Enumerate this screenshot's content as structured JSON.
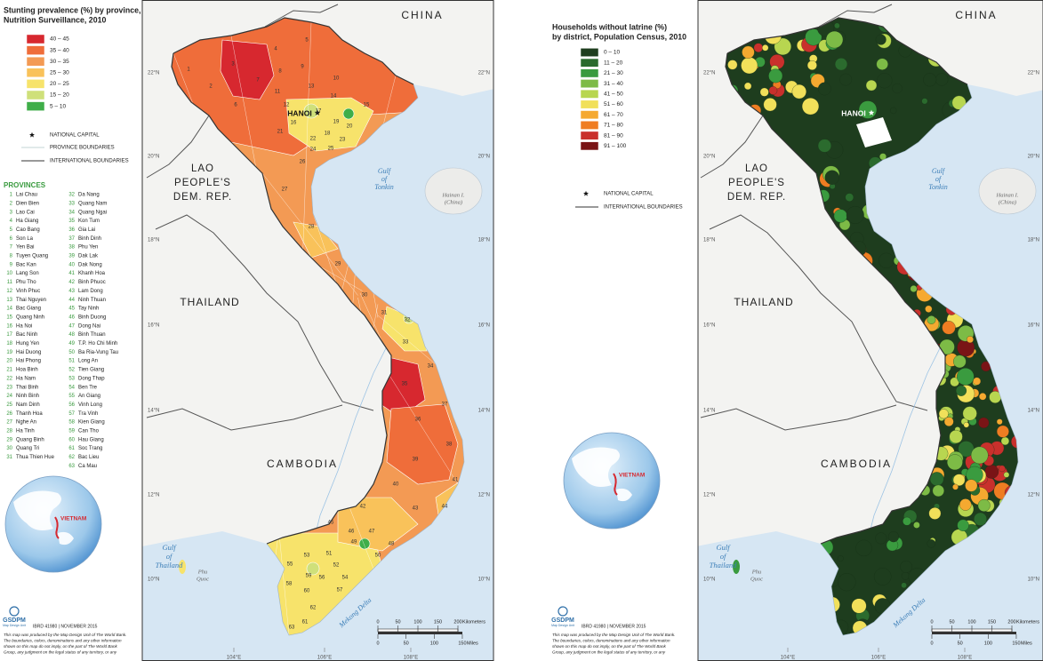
{
  "maps": [
    {
      "title": [
        "Stunting prevalence (%) by province,",
        "Nutrition Surveillance, 2010"
      ],
      "legend": [
        {
          "label": "40 – 45",
          "color": "#d7282f"
        },
        {
          "label": "35 – 40",
          "color": "#ef6d3a"
        },
        {
          "label": "30 – 35",
          "color": "#f39a54"
        },
        {
          "label": "25 – 30",
          "color": "#f9c25a"
        },
        {
          "label": "20 – 25",
          "color": "#f7e36b"
        },
        {
          "label": "15 – 20",
          "color": "#cfe07a"
        },
        {
          "label": "5 – 10",
          "color": "#3fae49"
        }
      ],
      "symbols": [
        {
          "label": "NATIONAL CAPITAL",
          "symbol": "star"
        },
        {
          "label": "PROVINCE BOUNDARIES",
          "symbol": "thin-line"
        },
        {
          "label": "INTERNATIONAL BOUNDARIES",
          "symbol": "line"
        }
      ],
      "provinces_heading": "PROVINCES",
      "provinces": [
        {
          "num": 1,
          "name": "Lai Chau"
        },
        {
          "num": 2,
          "name": "Dien Bien"
        },
        {
          "num": 3,
          "name": "Lao Cai"
        },
        {
          "num": 4,
          "name": "Ha Giang"
        },
        {
          "num": 5,
          "name": "Cao Bang"
        },
        {
          "num": 6,
          "name": "Son La"
        },
        {
          "num": 7,
          "name": "Yen Bai"
        },
        {
          "num": 8,
          "name": "Tuyen Quang"
        },
        {
          "num": 9,
          "name": "Bac Kan"
        },
        {
          "num": 10,
          "name": "Lang Son"
        },
        {
          "num": 11,
          "name": "Phu Tho"
        },
        {
          "num": 12,
          "name": "Vinh Phuc"
        },
        {
          "num": 13,
          "name": "Thai Nguyen"
        },
        {
          "num": 14,
          "name": "Bac Giang"
        },
        {
          "num": 15,
          "name": "Quang Ninh"
        },
        {
          "num": 16,
          "name": "Ha Noi"
        },
        {
          "num": 17,
          "name": "Bac Ninh"
        },
        {
          "num": 18,
          "name": "Hung Yen"
        },
        {
          "num": 19,
          "name": "Hai Duong"
        },
        {
          "num": 20,
          "name": "Hai Phong"
        },
        {
          "num": 21,
          "name": "Hoa Binh"
        },
        {
          "num": 22,
          "name": "Ha Nam"
        },
        {
          "num": 23,
          "name": "Thai Binh"
        },
        {
          "num": 24,
          "name": "Ninh Binh"
        },
        {
          "num": 25,
          "name": "Nam Dinh"
        },
        {
          "num": 26,
          "name": "Thanh Hoa"
        },
        {
          "num": 27,
          "name": "Nghe An"
        },
        {
          "num": 28,
          "name": "Ha Tinh"
        },
        {
          "num": 29,
          "name": "Quang Binh"
        },
        {
          "num": 30,
          "name": "Quang Tri"
        },
        {
          "num": 31,
          "name": "Thua Thien Hue"
        },
        {
          "num": 32,
          "name": "Da Nang"
        },
        {
          "num": 33,
          "name": "Quang Nam"
        },
        {
          "num": 34,
          "name": "Quang Ngai"
        },
        {
          "num": 35,
          "name": "Kon Tum"
        },
        {
          "num": 36,
          "name": "Gia Lai"
        },
        {
          "num": 37,
          "name": "Binh Dinh"
        },
        {
          "num": 38,
          "name": "Phu Yen"
        },
        {
          "num": 39,
          "name": "Dak Lak"
        },
        {
          "num": 40,
          "name": "Dak Nong"
        },
        {
          "num": 41,
          "name": "Khanh Hoa"
        },
        {
          "num": 42,
          "name": "Binh Phuoc"
        },
        {
          "num": 43,
          "name": "Lam Dong"
        },
        {
          "num": 44,
          "name": "Ninh Thuan"
        },
        {
          "num": 45,
          "name": "Tay Ninh"
        },
        {
          "num": 46,
          "name": "Binh Duong"
        },
        {
          "num": 47,
          "name": "Dong Nai"
        },
        {
          "num": 48,
          "name": "Binh Thuan"
        },
        {
          "num": 49,
          "name": "T.P. Ho Chi Minh"
        },
        {
          "num": 50,
          "name": "Ba Ria-Vung Tau"
        },
        {
          "num": 51,
          "name": "Long An"
        },
        {
          "num": 52,
          "name": "Tien Giang"
        },
        {
          "num": 53,
          "name": "Dong Thap"
        },
        {
          "num": 54,
          "name": "Ben Tre"
        },
        {
          "num": 55,
          "name": "An Giang"
        },
        {
          "num": 56,
          "name": "Vinh Long"
        },
        {
          "num": 57,
          "name": "Tra Vinh"
        },
        {
          "num": 58,
          "name": "Kien Giang"
        },
        {
          "num": 59,
          "name": "Can Tho"
        },
        {
          "num": 60,
          "name": "Hau Giang"
        },
        {
          "num": 61,
          "name": "Soc Trang"
        },
        {
          "num": 62,
          "name": "Bac Lieu"
        },
        {
          "num": 63,
          "name": "Ca Mau"
        }
      ]
    },
    {
      "title": [
        "Households without latrine (%)",
        "by district, Population Census, 2010"
      ],
      "legend": [
        {
          "label": "0 – 10",
          "color": "#1e3d1e"
        },
        {
          "label": "11 – 20",
          "color": "#2b6b2e"
        },
        {
          "label": "21 – 30",
          "color": "#3a9b3f"
        },
        {
          "label": "31 – 40",
          "color": "#7dbb46"
        },
        {
          "label": "41 – 50",
          "color": "#b8d650"
        },
        {
          "label": "51 – 60",
          "color": "#f1e05a"
        },
        {
          "label": "61 – 70",
          "color": "#f5a930"
        },
        {
          "label": "71 – 80",
          "color": "#ef7d22"
        },
        {
          "label": "81 – 90",
          "color": "#c9302c"
        },
        {
          "label": "91 – 100",
          "color": "#7a1416"
        }
      ],
      "symbols": [
        {
          "label": "NATIONAL CAPITAL",
          "symbol": "star"
        },
        {
          "label": "INTERNATIONAL BOUNDARIES",
          "symbol": "line"
        }
      ]
    }
  ],
  "map_labels": {
    "china": "CHINA",
    "laos": [
      "LAO",
      "PEOPLE'S",
      "DEM. REP."
    ],
    "thailand": "THAILAND",
    "cambodia": "CAMBODIA",
    "gulf_tonkin": [
      "Gulf",
      "of",
      "Tonkin"
    ],
    "hainan": [
      "Hainan I.",
      "(China)"
    ],
    "gulf_thailand": [
      "Gulf",
      "of",
      "Thailand"
    ],
    "phu_quoc": [
      "Phu",
      "Quoc"
    ],
    "mekong_delta": "Mekong Delta",
    "capital": "HANOI"
  },
  "latitudes": [
    "22°N",
    "20°N",
    "18°N",
    "16°N",
    "14°N",
    "12°N",
    "10°N"
  ],
  "longitudes": [
    "104°E",
    "106°E",
    "108°E"
  ],
  "scale": {
    "km_ticks": [
      0,
      50,
      100,
      150,
      200
    ],
    "km_unit": "Kilometers",
    "mi_ticks": [
      0,
      50,
      100,
      150
    ],
    "mi_unit": "Miles"
  },
  "globe_label": "VIETNAM",
  "logo": "GSDPM",
  "logo_sub": "Map Design Unit",
  "credit": "IBRD 41980 | NOVEMBER 2015",
  "disclaimer": [
    "This map was produced by the Map Design Unit of The World Bank.",
    "The boundaries, colors, denominations and any other information",
    "shown on this map do not imply, on the part of The World Bank",
    "Group, any judgment on the legal status of any territory, or any"
  ]
}
